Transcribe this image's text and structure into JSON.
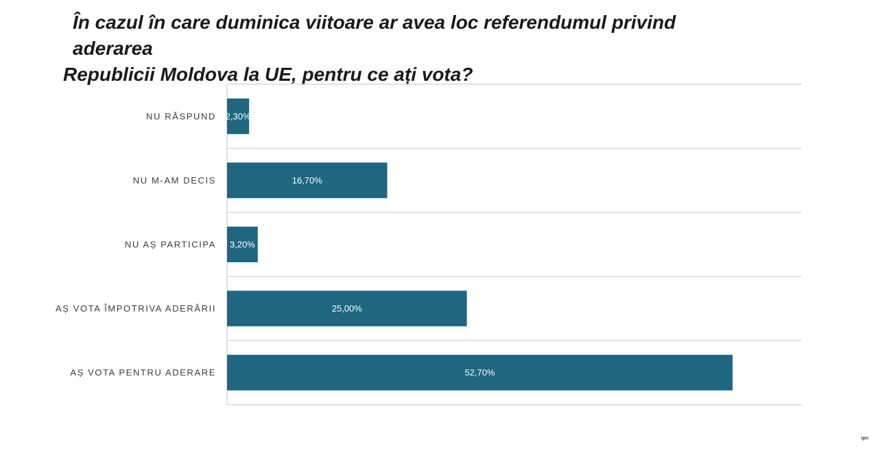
{
  "title": {
    "line1": "În cazul în care duminica viitoare ar avea loc referendumul privind aderarea",
    "line2": "Republicii Moldova la UE, pentru ce ați vota?"
  },
  "watermark": "ipn",
  "chart_data": {
    "type": "bar",
    "orientation": "horizontal",
    "categories": [
      "NU RĂSPUND",
      "NU M-AM DECIS",
      "NU AȘ PARTICIPA",
      "AȘ VOTA ÎMPOTRIVA ADERĂRII",
      "AȘ VOTA PENTRU ADERARE"
    ],
    "values": [
      2.3,
      16.7,
      3.2,
      25.0,
      52.7
    ],
    "value_labels": [
      "2,30%",
      "16,70%",
      "3,20%",
      "25,00%",
      "52,70%"
    ],
    "xlim": [
      0,
      60
    ],
    "grid": true,
    "bar_color": "#1f6680",
    "grid_color": "#d9d9d9",
    "xlabel": "",
    "ylabel": ""
  }
}
